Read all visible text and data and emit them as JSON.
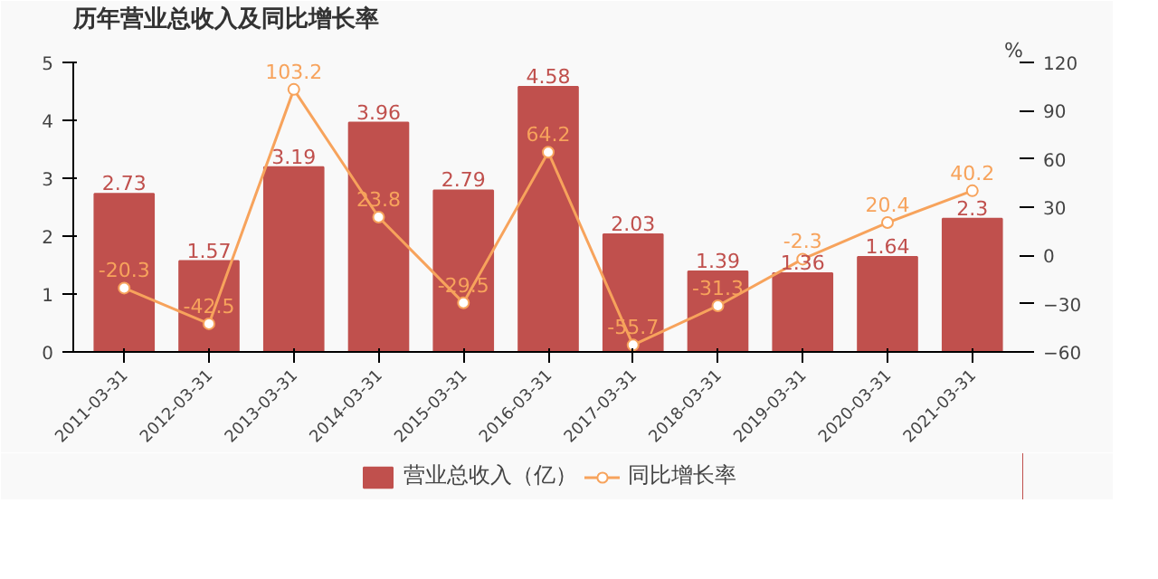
{
  "chart_data": {
    "type": "bar",
    "title": "历年营业总收入及同比增长率",
    "categories": [
      "2011-03-31",
      "2012-03-31",
      "2013-03-31",
      "2014-03-31",
      "2015-03-31",
      "2016-03-31",
      "2017-03-31",
      "2018-03-31",
      "2019-03-31",
      "2020-03-31",
      "2021-03-31"
    ],
    "series": [
      {
        "name": "营业总收入（亿）",
        "color": "#c0504d",
        "values": [
          2.73,
          1.57,
          3.19,
          3.96,
          2.79,
          4.58,
          2.03,
          1.39,
          1.36,
          1.64,
          2.3
        ]
      },
      {
        "name": "同比增长率",
        "type": "line",
        "axis": "y2",
        "color": "#f7a35c",
        "marker": "circle",
        "values": [
          -20.3,
          -42.5,
          103.2,
          23.8,
          -29.5,
          64.2,
          -55.7,
          -31.3,
          -2.3,
          20.4,
          40.2
        ]
      }
    ],
    "ylim": [
      0,
      5
    ],
    "yticks": [
      0,
      1,
      2,
      3,
      4,
      5
    ],
    "y2lim": [
      -60,
      120
    ],
    "y2ticks": [
      -60,
      -30,
      0,
      30,
      60,
      90,
      120
    ],
    "y2label": "%",
    "data_labels": true,
    "grid": false,
    "legend": "bottom"
  }
}
